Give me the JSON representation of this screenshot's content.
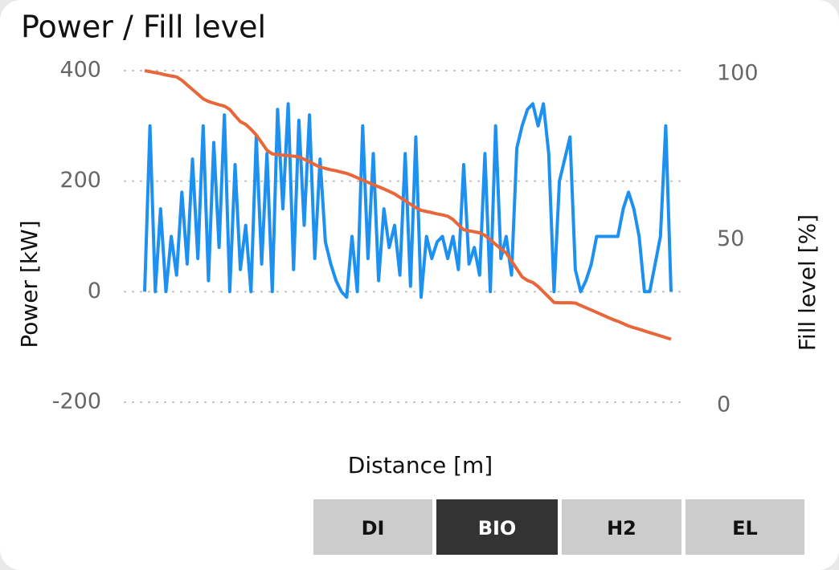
{
  "chart_data": {
    "type": "line",
    "title": "Power / Fill level",
    "xlabel": "Distance [m]",
    "ylabel": "Power [kW]",
    "y2label": "Fill level [%]",
    "ylim": [
      -200,
      400
    ],
    "yticks": [
      -200,
      0,
      200,
      400
    ],
    "y2lim": [
      0,
      100
    ],
    "y2ticks": [
      0,
      50,
      100
    ],
    "grid": true,
    "series": [
      {
        "name": "Power",
        "color": "#1e90f0",
        "values": [
          0,
          300,
          0,
          150,
          0,
          100,
          30,
          180,
          50,
          240,
          60,
          300,
          20,
          270,
          80,
          320,
          0,
          230,
          40,
          120,
          0,
          280,
          50,
          250,
          0,
          330,
          150,
          340,
          40,
          310,
          120,
          320,
          60,
          240,
          90,
          50,
          20,
          0,
          -10,
          100,
          0,
          300,
          60,
          250,
          20,
          150,
          80,
          120,
          30,
          250,
          10,
          280,
          -10,
          100,
          60,
          90,
          100,
          60,
          100,
          40,
          230,
          50,
          80,
          30,
          250,
          0,
          300,
          60,
          100,
          30,
          260,
          300,
          330,
          340,
          300,
          340,
          250,
          0,
          200,
          240,
          280,
          40,
          0,
          20,
          50,
          100,
          100,
          100,
          100,
          100,
          150,
          180,
          150,
          100,
          0,
          0,
          50,
          100,
          300,
          0
        ]
      },
      {
        "name": "Fill level",
        "color": "#e8673a",
        "axis": "y2",
        "values": [
          100,
          99.7,
          99.4,
          99.1,
          98.7,
          98.4,
          98.1,
          97.1,
          95.7,
          94.3,
          92.9,
          91.5,
          90.7,
          90.2,
          89.7,
          89.3,
          88.3,
          86.4,
          84.6,
          83.8,
          82.3,
          80.6,
          78.3,
          76,
          74.9,
          74.7,
          74.5,
          74.4,
          74.2,
          74,
          73.3,
          72.5,
          71.7,
          70.9,
          70.5,
          70.1,
          69.8,
          69.4,
          69,
          68.4,
          67.7,
          67,
          66.3,
          65.6,
          65,
          64.3,
          63.6,
          62.8,
          61.8,
          60.8,
          59.7,
          58.7,
          57.9,
          57.5,
          57.2,
          56.8,
          56.5,
          56.1,
          55.1,
          53.5,
          52,
          51.7,
          51.4,
          51.1,
          50.3,
          49,
          47.6,
          46.3,
          45,
          42.6,
          40.2,
          37.8,
          36.7,
          36.1,
          34.9,
          33.3,
          31.7,
          30.1,
          30,
          30,
          30,
          29.9,
          29.2,
          28.5,
          27.8,
          27.1,
          26.4,
          25.7,
          25,
          24.4,
          23.7,
          23,
          22.5,
          22,
          21.5,
          21,
          20.5,
          20,
          19.5,
          19
        ]
      }
    ]
  },
  "buttons": {
    "labels": [
      "DI",
      "BIO",
      "H2",
      "EL"
    ],
    "active": 1
  }
}
